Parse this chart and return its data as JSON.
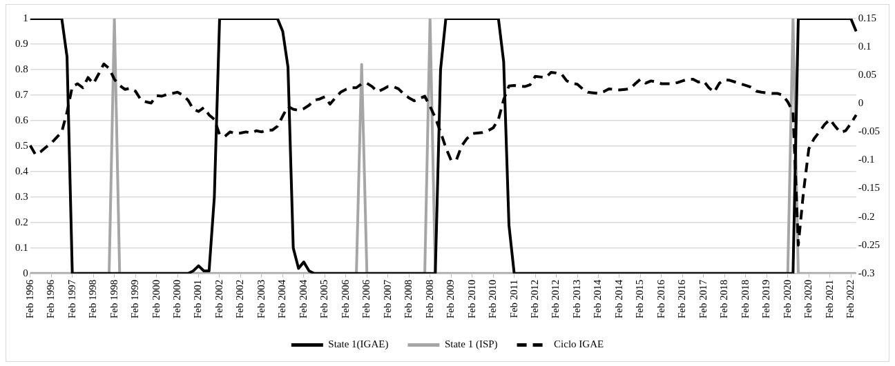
{
  "chart_data": {
    "type": "line",
    "categories": [
      "Feb 1996",
      null,
      null,
      null,
      "Feb 1996",
      null,
      null,
      null,
      "Feb 1997",
      null,
      null,
      null,
      "Feb 1998",
      null,
      null,
      null,
      "Feb 1998",
      null,
      null,
      null,
      "Feb 1999",
      null,
      null,
      null,
      "Feb 2000",
      null,
      null,
      null,
      "Feb 2000",
      null,
      null,
      null,
      "Feb 2001",
      null,
      null,
      null,
      "Feb 2002",
      null,
      null,
      null,
      "Feb 2002",
      null,
      null,
      null,
      "Feb 2003",
      null,
      null,
      null,
      "Feb 2004",
      null,
      null,
      null,
      "Feb 2004",
      null,
      null,
      null,
      "Feb 2005",
      null,
      null,
      null,
      "Feb 2006",
      null,
      null,
      null,
      "Feb 2006",
      null,
      null,
      null,
      "Feb 2007",
      null,
      null,
      null,
      "Feb 2008",
      null,
      null,
      null,
      "Feb 2008",
      null,
      null,
      null,
      "Feb 2009",
      null,
      null,
      null,
      "Feb 2010",
      null,
      null,
      null,
      "Feb 2010",
      null,
      null,
      null,
      "Feb 2011",
      null,
      null,
      null,
      "Feb 2012",
      null,
      null,
      null,
      "Feb 2012",
      null,
      null,
      null,
      "Feb 2013",
      null,
      null,
      null,
      "Feb 2014",
      null,
      null,
      null,
      "Feb 2014",
      null,
      null,
      null,
      "Feb 2015",
      null,
      null,
      null,
      "Feb 2016",
      null,
      null,
      null,
      "Feb 2016",
      null,
      null,
      null,
      "Feb 2017",
      null,
      null,
      null,
      "Feb 2018",
      null,
      null,
      null,
      "Feb 2018",
      null,
      null,
      null,
      "Feb 2019",
      null,
      null,
      null,
      "Feb 2020",
      null,
      null,
      null,
      "Feb 2020",
      null,
      null,
      null,
      "Feb 2021",
      null,
      null,
      null,
      "Feb 2022",
      null
    ],
    "series": [
      {
        "name": "State 1(IGAE)",
        "color": "#000000",
        "line_style": "solid",
        "values": [
          1,
          1,
          1,
          1,
          1,
          1,
          1,
          0.85,
          0,
          0,
          0,
          0,
          0,
          0,
          0,
          0,
          0,
          0,
          0,
          0,
          0,
          0,
          0,
          0,
          0,
          0,
          0,
          0,
          0,
          0,
          0,
          0.01,
          0.03,
          0.01,
          0.01,
          0.3,
          1,
          1,
          1,
          1,
          1,
          1,
          1,
          1,
          1,
          1,
          1,
          1,
          0.95,
          0.81,
          0.1,
          0.02,
          0.045,
          0.01,
          0,
          0,
          0,
          0,
          0,
          0,
          0,
          0,
          0,
          0,
          0,
          0,
          0,
          0,
          0,
          0,
          0,
          0,
          0,
          0,
          0,
          0,
          0,
          0,
          0.8,
          1,
          1,
          1,
          1,
          1,
          1,
          1,
          1,
          1,
          1,
          1,
          0.83,
          0.19,
          0,
          0,
          0,
          0,
          0,
          0,
          0,
          0,
          0,
          0,
          0,
          0,
          0,
          0,
          0,
          0,
          0,
          0,
          0,
          0,
          0,
          0,
          0,
          0,
          0,
          0,
          0,
          0,
          0,
          0,
          0,
          0,
          0,
          0,
          0,
          0,
          0,
          0,
          0,
          0,
          0,
          0,
          0,
          0,
          0,
          0,
          0,
          0,
          0,
          0,
          0,
          0,
          0,
          0,
          1,
          1,
          1,
          1,
          1,
          1,
          1,
          1,
          1,
          1,
          1,
          0.95
        ]
      },
      {
        "name": "State 1 (ISP)",
        "color": "#a6a6a6",
        "line_style": "solid",
        "values": [
          0,
          0,
          0,
          0,
          0,
          0,
          0,
          0,
          0,
          0,
          0,
          0,
          0,
          0,
          0,
          0,
          1,
          0,
          0,
          0,
          0,
          0,
          0,
          0,
          0,
          0,
          0,
          0,
          0,
          0,
          0,
          0,
          0,
          0,
          0,
          0,
          0,
          0,
          0,
          0,
          0,
          0,
          0,
          0,
          0,
          0,
          0,
          0,
          0,
          0,
          0,
          0,
          0,
          0,
          0,
          0,
          0,
          0,
          0,
          0,
          0,
          0,
          0,
          0.82,
          0,
          0,
          0,
          0,
          0,
          0,
          0,
          0,
          0,
          0,
          0,
          0,
          1,
          0,
          0,
          0,
          0,
          0,
          0,
          0,
          0,
          0,
          0,
          0,
          0,
          0,
          0,
          0,
          0,
          0,
          0,
          0,
          0,
          0,
          0,
          0,
          0,
          0,
          0,
          0,
          0,
          0,
          0,
          0,
          0,
          0,
          0,
          0,
          0,
          0,
          0,
          0,
          0,
          0,
          0,
          0,
          0,
          0,
          0,
          0,
          0,
          0,
          0,
          0,
          0,
          0,
          0,
          0,
          0,
          0,
          0,
          0,
          0,
          0,
          0,
          0,
          0,
          0,
          0,
          0,
          0,
          1,
          0,
          0,
          0,
          0,
          0,
          0,
          0,
          0,
          0,
          0,
          0,
          0
        ]
      },
      {
        "name": "Ciclo IGAE",
        "color": "#000000",
        "line_style": "dashed",
        "axis": "y2",
        "values": [
          -0.074,
          -0.09,
          -0.085,
          -0.077,
          -0.07,
          -0.06,
          -0.05,
          -0.015,
          0.03,
          0.035,
          0.028,
          0.046,
          0.035,
          0.052,
          0.07,
          0.062,
          0.043,
          0.032,
          0.025,
          0.027,
          0.022,
          0.007,
          0.003,
          0.001,
          0.014,
          0.013,
          0.016,
          0.018,
          0.02,
          0.015,
          0.006,
          -0.01,
          -0.014,
          -0.007,
          -0.02,
          -0.028,
          -0.055,
          -0.058,
          -0.05,
          -0.053,
          -0.052,
          -0.05,
          -0.052,
          -0.048,
          -0.05,
          -0.047,
          -0.047,
          -0.04,
          -0.022,
          -0.005,
          -0.01,
          -0.012,
          -0.009,
          -0.003,
          0.006,
          0.008,
          0.012,
          -0.001,
          0.01,
          0.02,
          0.025,
          0.028,
          0.028,
          0.035,
          0.036,
          0.03,
          0.021,
          0.025,
          0.03,
          0.03,
          0.026,
          0.017,
          0.01,
          0.005,
          0.009,
          0.013,
          -0.005,
          -0.025,
          -0.05,
          -0.078,
          -0.1,
          -0.1,
          -0.075,
          -0.062,
          -0.053,
          -0.052,
          -0.051,
          -0.048,
          -0.043,
          -0.028,
          0.007,
          0.031,
          0.032,
          0.031,
          0.03,
          0.033,
          0.048,
          0.047,
          0.046,
          0.055,
          0.054,
          0.052,
          0.04,
          0.036,
          0.034,
          0.026,
          0.02,
          0.019,
          0.018,
          0.021,
          0.026,
          0.025,
          0.024,
          0.025,
          0.026,
          0.035,
          0.043,
          0.036,
          0.04,
          0.038,
          0.035,
          0.035,
          0.035,
          0.037,
          0.04,
          0.043,
          0.043,
          0.038,
          0.04,
          0.028,
          0.02,
          0.036,
          0.042,
          0.041,
          0.038,
          0.035,
          0.032,
          0.029,
          0.022,
          0.02,
          0.019,
          0.018,
          0.018,
          0.015,
          0.003,
          -0.015,
          -0.25,
          -0.155,
          -0.08,
          -0.062,
          -0.05,
          -0.037,
          -0.028,
          -0.04,
          -0.051,
          -0.048,
          -0.035,
          -0.02
        ]
      }
    ],
    "ylim": [
      0,
      1
    ],
    "yticks": [
      0,
      0.1,
      0.2,
      0.3,
      0.4,
      0.5,
      0.6,
      0.7,
      0.8,
      0.9,
      1
    ],
    "y2lim": [
      -0.3,
      0.15
    ],
    "y2ticks": [
      -0.3,
      -0.25,
      -0.2,
      -0.15,
      -0.1,
      -0.05,
      0,
      0.05,
      0.1,
      0.15
    ],
    "grid": "y",
    "legend": "bottom",
    "marker": "none"
  }
}
